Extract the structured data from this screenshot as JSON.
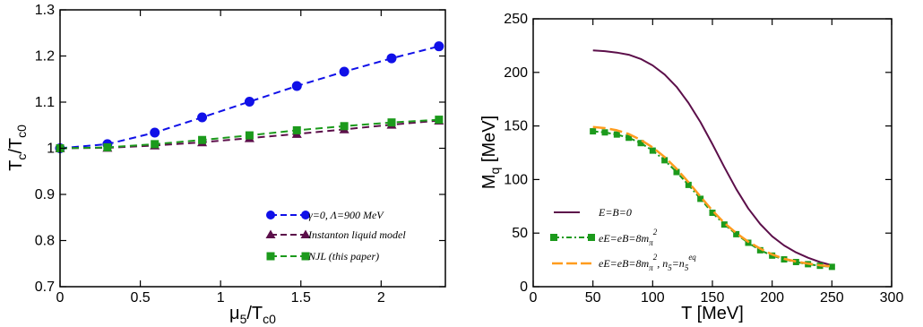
{
  "chart_data": [
    {
      "type": "line",
      "xlabel": "μ5/Tc0",
      "ylabel": "Tc/Tc0",
      "xlim": [
        0,
        2.4
      ],
      "ylim": [
        0.7,
        1.3
      ],
      "xticks": [
        "0",
        "0.5",
        "1",
        "1.5",
        "2"
      ],
      "yticks": [
        "0.7",
        "0.8",
        "0.9",
        "1",
        "1.1",
        "1.2",
        "1.3"
      ],
      "xtick_values": [
        0,
        0.5,
        1,
        1.5,
        2
      ],
      "ytick_values": [
        0.7,
        0.8,
        0.9,
        1.0,
        1.1,
        1.2,
        1.3
      ],
      "grid": false,
      "legend_position": "bottom-right",
      "series": [
        {
          "name": "γ=0, Λ=900 MeV",
          "color": "#1010e8",
          "marker": "circle",
          "dash": true,
          "x": [
            0,
            0.295,
            0.59,
            0.885,
            1.18,
            1.475,
            1.77,
            2.065,
            2.36
          ],
          "y": [
            1.0,
            1.009,
            1.034,
            1.067,
            1.101,
            1.135,
            1.166,
            1.195,
            1.221
          ]
        },
        {
          "name": "Instanton liquid model",
          "color": "#5c0f4a",
          "marker": "triangle",
          "dash": true,
          "x": [
            0,
            0.295,
            0.59,
            0.885,
            1.18,
            1.475,
            1.77,
            2.065,
            2.36
          ],
          "y": [
            1.0,
            1.001,
            1.006,
            1.013,
            1.022,
            1.031,
            1.041,
            1.051,
            1.06
          ]
        },
        {
          "name": "NJL (this paper)",
          "color": "#1c9a1c",
          "marker": "square",
          "dash": true,
          "x": [
            0,
            0.295,
            0.59,
            0.885,
            1.18,
            1.475,
            1.77,
            2.065,
            2.36
          ],
          "y": [
            1.0,
            1.002,
            1.009,
            1.018,
            1.028,
            1.039,
            1.048,
            1.056,
            1.062
          ]
        }
      ]
    },
    {
      "type": "line",
      "xlabel": "T [MeV]",
      "ylabel": "Mq [MeV]",
      "xlim": [
        0,
        300
      ],
      "ylim": [
        0,
        250
      ],
      "xticks": [
        "0",
        "50",
        "100",
        "150",
        "200",
        "250",
        "300"
      ],
      "yticks": [
        "0",
        "50",
        "100",
        "150",
        "200",
        "250"
      ],
      "xtick_values": [
        0,
        50,
        100,
        150,
        200,
        250,
        300
      ],
      "ytick_values": [
        0,
        50,
        100,
        150,
        200,
        250
      ],
      "grid": false,
      "legend_position": "bottom-left",
      "series": [
        {
          "name": "E=B=0",
          "color": "#5c0f4a",
          "marker": "none",
          "dash": false,
          "x": [
            50,
            60,
            70,
            80,
            90,
            100,
            110,
            120,
            130,
            140,
            150,
            160,
            170,
            180,
            190,
            200,
            210,
            220,
            230,
            240,
            250
          ],
          "y": [
            220.5,
            219.8,
            218.5,
            216.5,
            212.5,
            206.5,
            198,
            186.5,
            171.5,
            153.5,
            133,
            111.5,
            91,
            73,
            58.5,
            47,
            38.5,
            32,
            27,
            23,
            20
          ]
        },
        {
          "name": "eE=eB=8mπ²",
          "color": "#1c9a1c",
          "marker": "square",
          "dash": true,
          "x": [
            50,
            60,
            70,
            80,
            90,
            100,
            110,
            120,
            130,
            140,
            150,
            160,
            170,
            180,
            190,
            200,
            210,
            220,
            230,
            240,
            250
          ],
          "y": [
            145,
            144,
            142,
            139,
            134,
            127,
            118,
            107,
            95,
            82,
            69,
            58,
            49,
            41,
            34,
            29,
            25.5,
            23,
            21,
            19.5,
            18.5
          ]
        },
        {
          "name": "eE=eB=8mπ², n5=n5eq",
          "color": "#ff9c1e",
          "marker": "none",
          "dash": true,
          "x": [
            50,
            60,
            70,
            80,
            90,
            100,
            110,
            120,
            130,
            140,
            150,
            160,
            170,
            180,
            190,
            200,
            210,
            220,
            230,
            240,
            250
          ],
          "y": [
            149,
            148,
            146,
            142.5,
            137,
            130,
            121,
            110,
            97.5,
            84,
            71,
            59.5,
            50,
            42,
            35.5,
            30,
            26,
            23.5,
            21.5,
            20,
            19
          ]
        }
      ]
    }
  ],
  "legend_labels": {
    "left": {
      "gamma": "γ=0, Λ=900 MeV",
      "instanton": "Instanton liquid model",
      "njl": "NJL (this paper)"
    },
    "right": {
      "zero": "E=B=0",
      "field_base": "eE=eB=8m",
      "field_sub": "π",
      "field_sup": "2",
      "chiral_sep": ", n",
      "chiral_sub5": "5",
      "chiral_eq": "=n",
      "chiral_sub5b": "5",
      "chiral_sup": "eq"
    }
  },
  "axis_titles": {
    "left_y_main": "T",
    "left_y_sub": "c",
    "left_y_slash": "/T",
    "left_y_sub2": "c0",
    "left_x_main": "μ",
    "left_x_sub": "5",
    "left_x_slash": "/T",
    "left_x_sub2": "c0",
    "right_y_main": "M",
    "right_y_sub": "q",
    "right_y_unit": " [MeV]",
    "right_x": "T [MeV]"
  }
}
